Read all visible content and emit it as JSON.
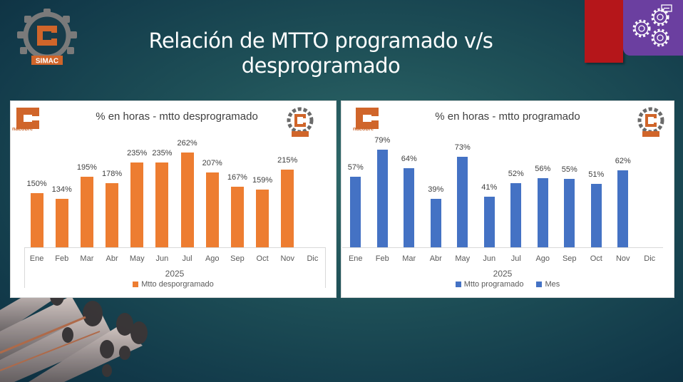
{
  "slide": {
    "title_line1": "Relación de MTTO programado v/s",
    "title_line2": "desprogramado",
    "logo_text": "SIMAC",
    "colors": {
      "background": "#1f5158",
      "accent_red": "#b5161a",
      "accent_purple": "#6b3fa0",
      "orange": "#ed7d31",
      "blue": "#4472c4"
    }
  },
  "brand": {
    "nacobre": "nacobre",
    "simac": "SIMAC"
  },
  "chart_data": [
    {
      "type": "bar",
      "title": "% en horas - mtto desprogramado",
      "xlabel": "2025",
      "ylabel": "",
      "categories": [
        "Ene",
        "Feb",
        "Mar",
        "Abr",
        "May",
        "Jun",
        "Jul",
        "Ago",
        "Sep",
        "Oct",
        "Nov",
        "Dic"
      ],
      "series": [
        {
          "name": "Mtto desporgramado",
          "color": "#ed7d31",
          "values": [
            150,
            134,
            195,
            178,
            235,
            235,
            262,
            207,
            167,
            159,
            215,
            null
          ],
          "labels": [
            "150%",
            "134%",
            "195%",
            "178%",
            "235%",
            "235%",
            "262%",
            "207%",
            "167%",
            "159%",
            "215%",
            ""
          ]
        }
      ],
      "legend": [
        "Mtto desporgramado"
      ],
      "legend_position": "bottom",
      "grid": false,
      "ylim": [
        0,
        280
      ]
    },
    {
      "type": "bar",
      "title": "% en horas - mtto programado",
      "xlabel": "2025",
      "ylabel": "",
      "categories": [
        "Ene",
        "Feb",
        "Mar",
        "Abr",
        "May",
        "Jun",
        "Jul",
        "Ago",
        "Sep",
        "Oct",
        "Nov",
        "Dic"
      ],
      "series": [
        {
          "name": "Mtto programado",
          "color": "#4472c4",
          "values": [
            57,
            79,
            64,
            39,
            73,
            41,
            52,
            56,
            55,
            51,
            62,
            null
          ],
          "labels": [
            "57%",
            "79%",
            "64%",
            "39%",
            "73%",
            "41%",
            "52%",
            "56%",
            "55%",
            "51%",
            "62%",
            ""
          ]
        }
      ],
      "legend": [
        "Mtto programado",
        "Mes"
      ],
      "legend_position": "bottom",
      "grid": false,
      "ylim": [
        0,
        85
      ]
    }
  ]
}
